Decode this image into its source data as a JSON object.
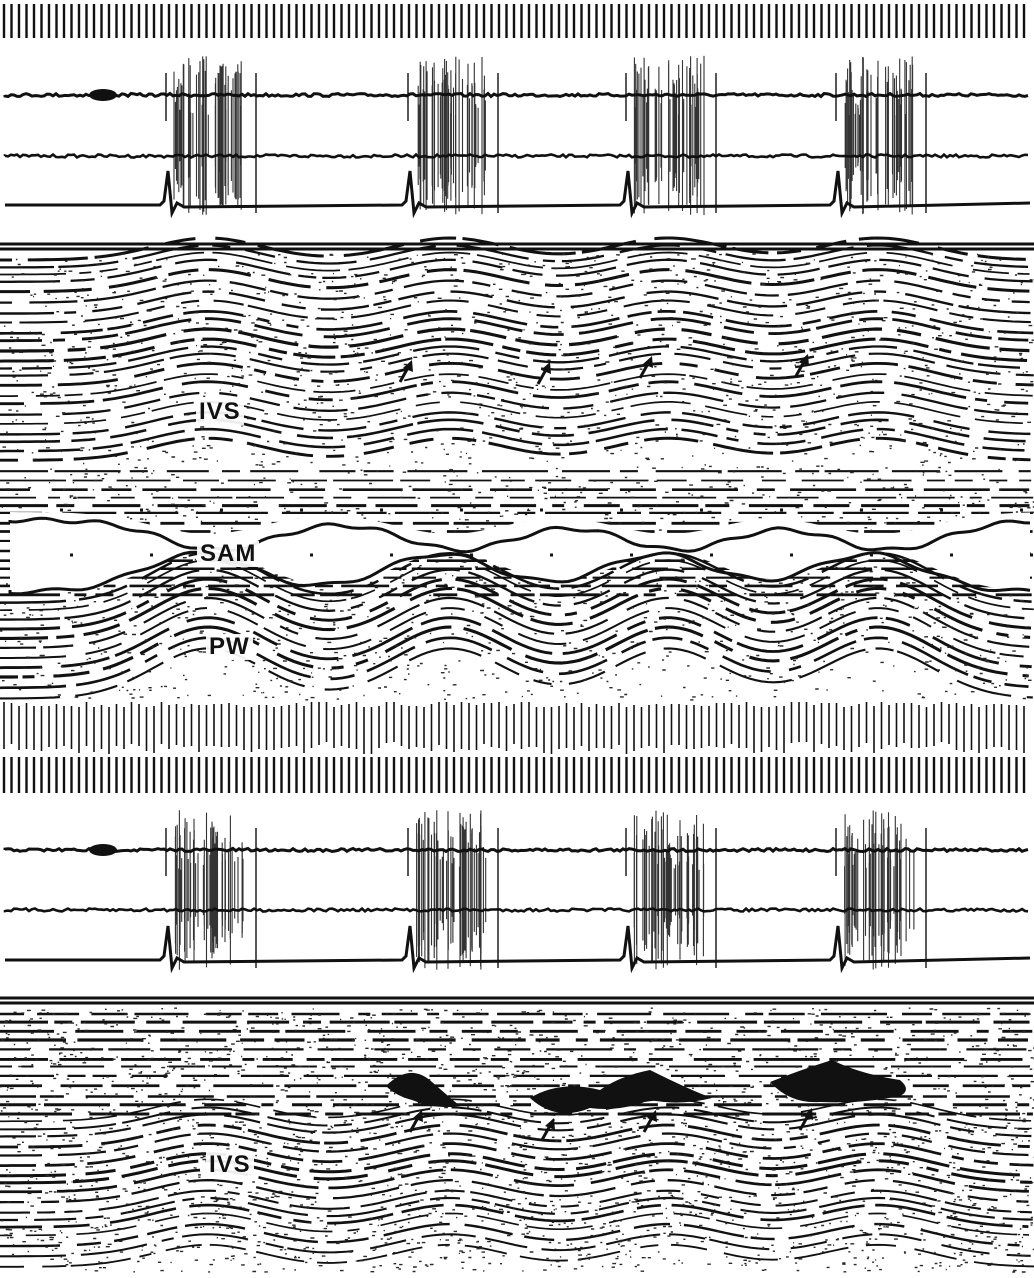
{
  "labels": {
    "ivs_top": "IVS",
    "sam": "SAM",
    "pw": "PW",
    "ivs_bottom": "IVS"
  },
  "colors": {
    "ink": "#111111",
    "paper": "#ffffff",
    "speckle": "#2a2a2a"
  }
}
